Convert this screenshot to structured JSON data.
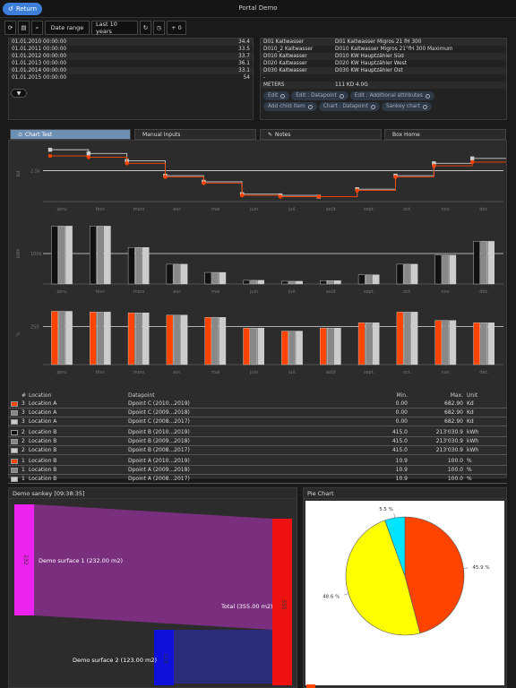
{
  "header": {
    "return_label": "Return",
    "title": "Portal Demo"
  },
  "toolbar": {
    "date_range_label": "Date range",
    "period_label": "Last 10 years",
    "plus_label": "+ 0"
  },
  "values_table": [
    {
      "date": "01.01.2010 00:00:00",
      "value": "34.4"
    },
    {
      "date": "01.01.2011 00:00:00",
      "value": "33.5"
    },
    {
      "date": "01.01.2012 00:00:00",
      "value": "33.7"
    },
    {
      "date": "01.01.2013 00:00:00",
      "value": "36.1"
    },
    {
      "date": "01.01.2014 00:00:00",
      "value": "33.1"
    },
    {
      "date": "01.01.2015 00:00:00",
      "value": "54"
    }
  ],
  "meters": {
    "rows": [
      {
        "code": "D01 Kaltwasser",
        "desc": "D01 Kaltwasser Migros 21 fH 300"
      },
      {
        "code": "D010_2 Kaltwasser",
        "desc": "D010 Kaltwasser Migros 21°fH 300 Maximum"
      },
      {
        "code": "D010 Kaltwasser",
        "desc": "D010 KW Hauptzähler Süd"
      },
      {
        "code": "D020 Kaltwasser",
        "desc": "D020 KW Hauptzähler West"
      },
      {
        "code": "D030 Kaltwasser",
        "desc": "D030 KW Hauptzähler Ost"
      },
      {
        "code": "-",
        "desc": ""
      }
    ],
    "meters_label": "METERS",
    "meters_value": "111 KD 4.0G",
    "chips": [
      "Edit",
      "Edit : Datapoint",
      "Edit : Additional attributes",
      "Add child item",
      "Chart : Datapoint",
      "Sankey chart"
    ]
  },
  "tabs": [
    "Chart Test",
    "Manual Inputs",
    "Notes",
    "Box Home"
  ],
  "months": [
    "janv.",
    "févr.",
    "mars",
    "avr.",
    "mai",
    "juin",
    "juil.",
    "août",
    "sept.",
    "oct.",
    "nov.",
    "déc."
  ],
  "chart_data": [
    {
      "type": "line",
      "ylabel": "Kd",
      "ytick": "2.5k",
      "series": [
        {
          "values": [
            4.2,
            3.9,
            3.3,
            2.1,
            1.6,
            0.6,
            0.5,
            0.4,
            1.0,
            2.1,
            3.1,
            3.5
          ],
          "color": "#cccccc"
        },
        {
          "values": [
            3.7,
            3.6,
            3.1,
            2.0,
            1.5,
            0.5,
            0.4,
            0.4,
            0.9,
            2.0,
            2.9,
            3.2
          ],
          "color": "#ff4400"
        }
      ]
    },
    {
      "type": "bar",
      "ylabel": "kWh",
      "ytick": "100k",
      "series": [
        {
          "values": [
            190,
            190,
            120,
            65,
            38,
            12,
            9,
            11,
            30,
            65,
            95,
            140
          ],
          "color": "#111111"
        },
        {
          "values": [
            190,
            190,
            120,
            65,
            38,
            12,
            9,
            11,
            30,
            65,
            95,
            140
          ],
          "color": "#888888"
        },
        {
          "values": [
            190,
            190,
            120,
            65,
            38,
            12,
            9,
            11,
            30,
            65,
            95,
            140
          ],
          "color": "#cccccc"
        }
      ]
    },
    {
      "type": "bar",
      "ylabel": "%",
      "ytick": "250",
      "series": [
        {
          "values": [
            350,
            345,
            340,
            325,
            310,
            240,
            220,
            240,
            275,
            345,
            290,
            275
          ],
          "color": "#ff4400"
        },
        {
          "values": [
            350,
            345,
            340,
            325,
            310,
            240,
            220,
            240,
            275,
            345,
            290,
            275
          ],
          "color": "#888888"
        },
        {
          "values": [
            350,
            345,
            340,
            325,
            310,
            240,
            220,
            240,
            275,
            345,
            290,
            275
          ],
          "color": "#cccccc"
        }
      ]
    }
  ],
  "legend": {
    "headers": {
      "num": "#",
      "location": "Location",
      "datapoint": "Datapoint",
      "min": "Min.",
      "max": "Max.",
      "unit": "Unit"
    },
    "groups": [
      [
        {
          "color": "#ff4400",
          "num": "3",
          "location": "Location A",
          "datapoint": "Dpoint C (2010...2019)",
          "min": "0.00",
          "max": "682.90",
          "unit": "Kd"
        },
        {
          "color": "#888888",
          "num": "3",
          "location": "Location A",
          "datapoint": "Dpoint C (2009...2018)",
          "min": "0.00",
          "max": "682.90",
          "unit": "Kd"
        },
        {
          "color": "#cccccc",
          "num": "3",
          "location": "Location A",
          "datapoint": "Dpoint C (2008...2017)",
          "min": "0.00",
          "max": "682.90",
          "unit": "Kd"
        }
      ],
      [
        {
          "color": "#111111",
          "num": "2",
          "location": "Location B",
          "datapoint": "Dpoint B (2010...2019)",
          "min": "415.0",
          "max": "213'030.9",
          "unit": "kWh"
        },
        {
          "color": "#888888",
          "num": "2",
          "location": "Location B",
          "datapoint": "Dpoint B (2009...2018)",
          "min": "415.0",
          "max": "213'030.9",
          "unit": "kWh"
        },
        {
          "color": "#cccccc",
          "num": "2",
          "location": "Location B",
          "datapoint": "Dpoint B (2008...2017)",
          "min": "415.0",
          "max": "213'030.9",
          "unit": "kWh"
        }
      ],
      [
        {
          "color": "#ff4400",
          "num": "1",
          "location": "Location B",
          "datapoint": "Dpoint A (2010...2019)",
          "min": "10.9",
          "max": "100.0",
          "unit": "%"
        },
        {
          "color": "#888888",
          "num": "1",
          "location": "Location B",
          "datapoint": "Dpoint A (2009...2018)",
          "min": "10.9",
          "max": "100.0",
          "unit": "%"
        },
        {
          "color": "#cccccc",
          "num": "1",
          "location": "Location B",
          "datapoint": "Dpoint A (2008...2017)",
          "min": "10.9",
          "max": "100.0",
          "unit": "%"
        }
      ]
    ]
  },
  "sankey": {
    "title": "Demo sankey [09:38:35]",
    "left_top_value": "232",
    "left_bottom_value": "123",
    "right_value": "355",
    "label_1": "Demo surface 1 (232.00 m2)",
    "label_2": "Demo surface 2 (123.00 m2)",
    "label_total": "Total (355.00 m2)"
  },
  "pie": {
    "title": "Pie Chart",
    "slices": [
      {
        "value": 45.9,
        "label": "45.9 %",
        "color": "#ff4400"
      },
      {
        "value": 48.6,
        "label": "48.6 %",
        "color": "#ffff00"
      },
      {
        "value": 5.5,
        "label": "5.5 %",
        "color": "#00e5ff"
      }
    ]
  }
}
